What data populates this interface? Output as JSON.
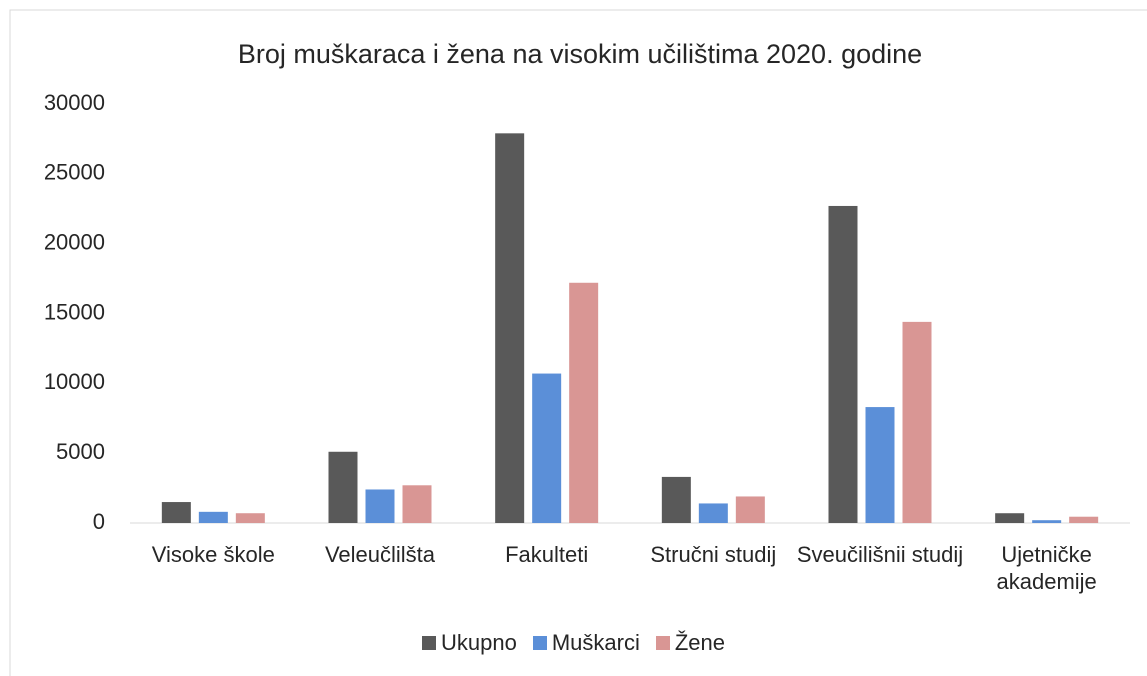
{
  "chart_data": {
    "type": "bar",
    "title": "Broj muškaraca i žena na visokim učilištima 2020. godine",
    "categories": [
      "Visoke škole",
      "Veleučlilšta",
      "Fakulteti",
      "Stručni studij",
      "Sveučilišnii studij",
      "Ujetničke akademije"
    ],
    "series": [
      {
        "name": "Ukupno",
        "color": "#595959",
        "values": [
          1500,
          5100,
          27900,
          3300,
          22700,
          700
        ]
      },
      {
        "name": "Muškarci",
        "color": "#5b8fd8",
        "values": [
          800,
          2400,
          10700,
          1400,
          8300,
          200
        ]
      },
      {
        "name": "Žene",
        "color": "#d99694",
        "values": [
          700,
          2700,
          17200,
          1900,
          14400,
          450
        ]
      }
    ],
    "ylim": [
      0,
      30000
    ],
    "yticks": [
      0,
      5000,
      10000,
      15000,
      20000,
      25000,
      30000
    ],
    "grid": false,
    "legend": "bottom"
  }
}
